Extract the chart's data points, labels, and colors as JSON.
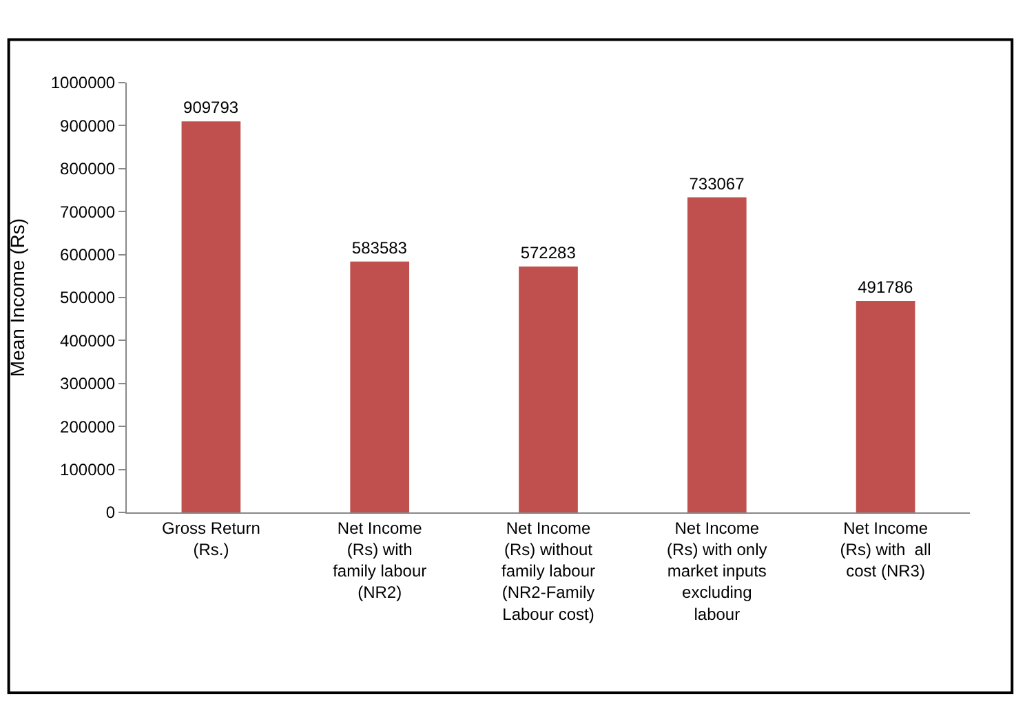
{
  "chart_data": {
    "type": "bar",
    "ylabel": "Mean Income (Rs)",
    "categories": [
      "Gross Return (Rs.)",
      "Net Income (Rs) with family labour (NR2)",
      "Net Income (Rs) without family labour (NR2-Family Labour cost)",
      "Net Income (Rs) with only market inputs excluding labour",
      "Net Income (Rs) with  all cost (NR3)"
    ],
    "values": [
      909793,
      583583,
      572283,
      733067,
      491786
    ],
    "color": "#c0504d",
    "ylim": [
      0,
      1000000
    ],
    "yticks": [
      0,
      100000,
      200000,
      300000,
      400000,
      500000,
      600000,
      700000,
      800000,
      900000,
      1000000
    ],
    "data_labels": true
  }
}
